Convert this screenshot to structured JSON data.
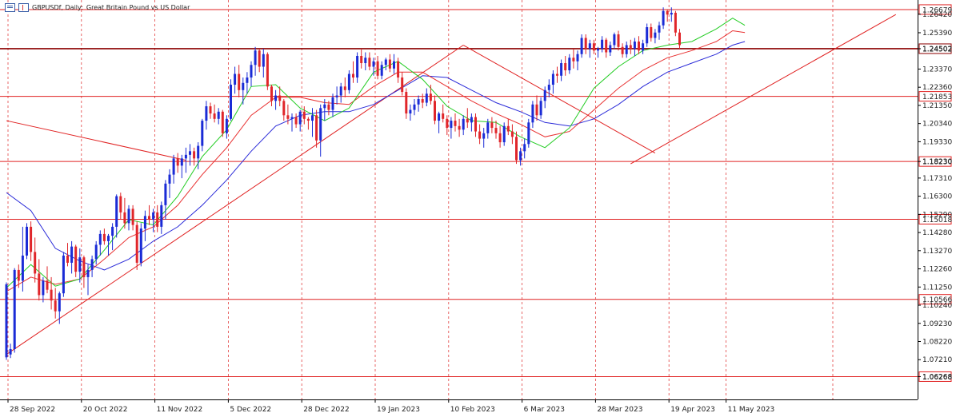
{
  "header": {
    "symbol": "GBPUSDf, Daily:",
    "description": "Great Britain Pound vs US Dollar"
  },
  "colors": {
    "bull": "#1a2bd6",
    "bear": "#e0262a",
    "ma_fast": "#22cc22",
    "ma_mid": "#e83030",
    "ma_slow": "#2a2ad8",
    "level_line": "#e02020",
    "level_line_strong": "#8b0000",
    "grid": "#e24040"
  },
  "chart_data": {
    "type": "candlestick",
    "ylim": [
      1.05,
      1.2721
    ],
    "y_ticks": [
      "1.26420",
      "1.25390",
      "1.24502",
      "1.23370",
      "1.22360",
      "1.21350",
      "1.20340",
      "1.19330",
      "1.18230",
      "1.17310",
      "1.16300",
      "1.15290",
      "1.14280",
      "1.13270",
      "1.12260",
      "1.11250",
      "1.10240",
      "1.09230",
      "1.08220",
      "1.07210",
      "1.06268"
    ],
    "x_labels": [
      "28 Sep 2022",
      "20 Oct 2022",
      "11 Nov 2022",
      "5 Dec 2022",
      "28 Dec 2022",
      "19 Jan 2023",
      "10 Feb 2023",
      "6 Mar 2023",
      "28 Mar 2023",
      "19 Apr 2023",
      "11 May 2023"
    ],
    "levels": [
      {
        "label": "1.26679",
        "value": 1.26679,
        "strong": false
      },
      {
        "label": "1.24502",
        "value": 1.24502,
        "strong": true
      },
      {
        "label": "1.21853",
        "value": 1.21853,
        "strong": false
      },
      {
        "label": "1.18230",
        "value": 1.1823,
        "strong": false
      },
      {
        "label": "1.15018",
        "value": 1.15018,
        "strong": false
      },
      {
        "label": "1.10566",
        "value": 1.10566,
        "strong": false
      },
      {
        "label": "1.06268",
        "value": 1.06268,
        "strong": false
      }
    ],
    "trendlines": [
      {
        "from": [
          0,
          1.075
        ],
        "to": [
          112,
          1.247
        ]
      },
      {
        "from": [
          0,
          1.205
        ],
        "to": [
          44,
          1.183
        ]
      },
      {
        "from": [
          112,
          1.247
        ],
        "to": [
          159,
          1.187
        ]
      },
      {
        "from": [
          153,
          1.181
        ],
        "to": [
          218,
          1.264
        ]
      }
    ],
    "ohlc": [
      [
        1.0734,
        1.1151,
        1.072,
        1.114
      ],
      [
        1.075,
        1.081,
        1.073,
        1.078
      ],
      [
        1.078,
        1.123,
        1.076,
        1.122
      ],
      [
        1.122,
        1.125,
        1.112,
        1.116
      ],
      [
        1.116,
        1.146,
        1.11,
        1.13
      ],
      [
        1.13,
        1.148,
        1.128,
        1.146
      ],
      [
        1.146,
        1.149,
        1.127,
        1.132
      ],
      [
        1.132,
        1.14,
        1.115,
        1.12
      ],
      [
        1.12,
        1.128,
        1.105,
        1.108
      ],
      [
        1.108,
        1.118,
        1.104,
        1.116
      ],
      [
        1.116,
        1.124,
        1.109,
        1.111
      ],
      [
        1.111,
        1.118,
        1.1,
        1.105
      ],
      [
        1.105,
        1.112,
        1.095,
        1.099
      ],
      [
        1.099,
        1.11,
        1.092,
        1.109
      ],
      [
        1.109,
        1.132,
        1.107,
        1.13
      ],
      [
        1.13,
        1.137,
        1.124,
        1.126
      ],
      [
        1.126,
        1.138,
        1.12,
        1.135
      ],
      [
        1.135,
        1.136,
        1.118,
        1.121
      ],
      [
        1.121,
        1.134,
        1.115,
        1.129
      ],
      [
        1.129,
        1.13,
        1.112,
        1.118
      ],
      [
        1.118,
        1.125,
        1.108,
        1.122
      ],
      [
        1.122,
        1.13,
        1.118,
        1.128
      ],
      [
        1.128,
        1.138,
        1.125,
        1.136
      ],
      [
        1.136,
        1.144,
        1.13,
        1.142
      ],
      [
        1.142,
        1.145,
        1.136,
        1.138
      ],
      [
        1.138,
        1.142,
        1.13,
        1.141
      ],
      [
        1.141,
        1.148,
        1.133,
        1.146
      ],
      [
        1.146,
        1.164,
        1.14,
        1.163
      ],
      [
        1.163,
        1.165,
        1.15,
        1.154
      ],
      [
        1.154,
        1.162,
        1.145,
        1.148
      ],
      [
        1.148,
        1.158,
        1.144,
        1.156
      ],
      [
        1.156,
        1.158,
        1.144,
        1.147
      ],
      [
        1.147,
        1.149,
        1.122,
        1.126
      ],
      [
        1.126,
        1.148,
        1.124,
        1.145
      ],
      [
        1.145,
        1.155,
        1.138,
        1.152
      ],
      [
        1.152,
        1.158,
        1.147,
        1.15
      ],
      [
        1.15,
        1.156,
        1.143,
        1.154
      ],
      [
        1.154,
        1.158,
        1.143,
        1.146
      ],
      [
        1.146,
        1.16,
        1.142,
        1.158
      ],
      [
        1.158,
        1.172,
        1.15,
        1.17
      ],
      [
        1.17,
        1.178,
        1.162,
        1.175
      ],
      [
        1.175,
        1.186,
        1.17,
        1.184
      ],
      [
        1.184,
        1.187,
        1.176,
        1.18
      ],
      [
        1.18,
        1.186,
        1.173,
        1.184
      ],
      [
        1.184,
        1.19,
        1.176,
        1.186
      ],
      [
        1.186,
        1.192,
        1.18,
        1.188
      ],
      [
        1.188,
        1.19,
        1.18,
        1.184
      ],
      [
        1.184,
        1.193,
        1.178,
        1.191
      ],
      [
        1.191,
        1.206,
        1.188,
        1.205
      ],
      [
        1.205,
        1.216,
        1.2,
        1.213
      ],
      [
        1.213,
        1.215,
        1.206,
        1.209
      ],
      [
        1.209,
        1.214,
        1.204,
        1.206
      ],
      [
        1.206,
        1.212,
        1.203,
        1.21
      ],
      [
        1.21,
        1.211,
        1.196,
        1.198
      ],
      [
        1.198,
        1.208,
        1.195,
        1.206
      ],
      [
        1.206,
        1.228,
        1.205,
        1.225
      ],
      [
        1.225,
        1.235,
        1.22,
        1.231
      ],
      [
        1.231,
        1.236,
        1.218,
        1.222
      ],
      [
        1.222,
        1.229,
        1.214,
        1.226
      ],
      [
        1.226,
        1.232,
        1.22,
        1.229
      ],
      [
        1.229,
        1.238,
        1.224,
        1.236
      ],
      [
        1.236,
        1.246,
        1.23,
        1.244
      ],
      [
        1.244,
        1.245,
        1.232,
        1.235
      ],
      [
        1.235,
        1.245,
        1.229,
        1.242
      ],
      [
        1.242,
        1.243,
        1.222,
        1.224
      ],
      [
        1.224,
        1.225,
        1.213,
        1.216
      ],
      [
        1.216,
        1.222,
        1.211,
        1.219
      ],
      [
        1.219,
        1.224,
        1.213,
        1.216
      ],
      [
        1.216,
        1.217,
        1.205,
        1.208
      ],
      [
        1.208,
        1.214,
        1.203,
        1.206
      ],
      [
        1.206,
        1.209,
        1.199,
        1.207
      ],
      [
        1.207,
        1.209,
        1.201,
        1.203
      ],
      [
        1.203,
        1.211,
        1.199,
        1.21
      ],
      [
        1.21,
        1.213,
        1.203,
        1.206
      ],
      [
        1.206,
        1.207,
        1.2,
        1.205
      ],
      [
        1.205,
        1.212,
        1.196,
        1.208
      ],
      [
        1.208,
        1.211,
        1.19,
        1.194
      ],
      [
        1.194,
        1.214,
        1.185,
        1.212
      ],
      [
        1.212,
        1.217,
        1.205,
        1.214
      ],
      [
        1.214,
        1.216,
        1.208,
        1.211
      ],
      [
        1.211,
        1.22,
        1.207,
        1.218
      ],
      [
        1.218,
        1.224,
        1.214,
        1.219
      ],
      [
        1.219,
        1.226,
        1.215,
        1.224
      ],
      [
        1.224,
        1.229,
        1.218,
        1.222
      ],
      [
        1.222,
        1.233,
        1.22,
        1.231
      ],
      [
        1.231,
        1.238,
        1.226,
        1.229
      ],
      [
        1.229,
        1.243,
        1.226,
        1.241
      ],
      [
        1.241,
        1.245,
        1.234,
        1.237
      ],
      [
        1.237,
        1.243,
        1.233,
        1.24
      ],
      [
        1.24,
        1.243,
        1.233,
        1.235
      ],
      [
        1.235,
        1.24,
        1.23,
        1.238
      ],
      [
        1.238,
        1.241,
        1.228,
        1.23
      ],
      [
        1.23,
        1.238,
        1.228,
        1.236
      ],
      [
        1.236,
        1.24,
        1.233,
        1.239
      ],
      [
        1.239,
        1.242,
        1.232,
        1.234
      ],
      [
        1.234,
        1.242,
        1.231,
        1.238
      ],
      [
        1.238,
        1.24,
        1.226,
        1.229
      ],
      [
        1.229,
        1.232,
        1.219,
        1.221
      ],
      [
        1.221,
        1.223,
        1.206,
        1.209
      ],
      [
        1.209,
        1.214,
        1.205,
        1.211
      ],
      [
        1.211,
        1.217,
        1.208,
        1.214
      ],
      [
        1.214,
        1.219,
        1.21,
        1.217
      ],
      [
        1.217,
        1.22,
        1.212,
        1.215
      ],
      [
        1.215,
        1.223,
        1.213,
        1.22
      ],
      [
        1.22,
        1.225,
        1.214,
        1.216
      ],
      [
        1.216,
        1.219,
        1.203,
        1.205
      ],
      [
        1.205,
        1.21,
        1.198,
        1.209
      ],
      [
        1.209,
        1.214,
        1.204,
        1.206
      ],
      [
        1.206,
        1.208,
        1.197,
        1.201
      ],
      [
        1.201,
        1.207,
        1.195,
        1.205
      ],
      [
        1.205,
        1.209,
        1.199,
        1.202
      ],
      [
        1.202,
        1.206,
        1.196,
        1.2
      ],
      [
        1.2,
        1.208,
        1.197,
        1.206
      ],
      [
        1.206,
        1.212,
        1.201,
        1.204
      ],
      [
        1.204,
        1.209,
        1.199,
        1.207
      ],
      [
        1.207,
        1.209,
        1.196,
        1.199
      ],
      [
        1.199,
        1.203,
        1.192,
        1.195
      ],
      [
        1.195,
        1.201,
        1.19,
        1.198
      ],
      [
        1.198,
        1.206,
        1.195,
        1.204
      ],
      [
        1.204,
        1.207,
        1.198,
        1.201
      ],
      [
        1.201,
        1.205,
        1.195,
        1.198
      ],
      [
        1.198,
        1.202,
        1.19,
        1.193
      ],
      [
        1.193,
        1.204,
        1.191,
        1.202
      ],
      [
        1.202,
        1.206,
        1.197,
        1.199
      ],
      [
        1.199,
        1.203,
        1.192,
        1.196
      ],
      [
        1.196,
        1.199,
        1.181,
        1.183
      ],
      [
        1.183,
        1.19,
        1.18,
        1.188
      ],
      [
        1.188,
        1.195,
        1.184,
        1.192
      ],
      [
        1.192,
        1.206,
        1.19,
        1.204
      ],
      [
        1.204,
        1.216,
        1.201,
        1.214
      ],
      [
        1.214,
        1.219,
        1.205,
        1.208
      ],
      [
        1.208,
        1.218,
        1.206,
        1.216
      ],
      [
        1.216,
        1.224,
        1.212,
        1.222
      ],
      [
        1.222,
        1.228,
        1.218,
        1.225
      ],
      [
        1.225,
        1.233,
        1.22,
        1.231
      ],
      [
        1.231,
        1.235,
        1.226,
        1.23
      ],
      [
        1.23,
        1.239,
        1.227,
        1.237
      ],
      [
        1.237,
        1.241,
        1.23,
        1.233
      ],
      [
        1.233,
        1.242,
        1.231,
        1.24
      ],
      [
        1.24,
        1.245,
        1.234,
        1.238
      ],
      [
        1.238,
        1.244,
        1.233,
        1.242
      ],
      [
        1.242,
        1.253,
        1.24,
        1.251
      ],
      [
        1.251,
        1.253,
        1.242,
        1.245
      ],
      [
        1.245,
        1.25,
        1.24,
        1.248
      ],
      [
        1.248,
        1.25,
        1.242,
        1.244
      ],
      [
        1.244,
        1.246,
        1.24,
        1.245
      ],
      [
        1.245,
        1.252,
        1.243,
        1.25
      ],
      [
        1.25,
        1.251,
        1.24,
        1.243
      ],
      [
        1.243,
        1.249,
        1.241,
        1.247
      ],
      [
        1.247,
        1.254,
        1.245,
        1.253
      ],
      [
        1.253,
        1.255,
        1.244,
        1.246
      ],
      [
        1.246,
        1.248,
        1.24,
        1.242
      ],
      [
        1.242,
        1.249,
        1.24,
        1.247
      ],
      [
        1.247,
        1.25,
        1.242,
        1.245
      ],
      [
        1.245,
        1.251,
        1.241,
        1.249
      ],
      [
        1.249,
        1.252,
        1.242,
        1.244
      ],
      [
        1.244,
        1.25,
        1.242,
        1.248
      ],
      [
        1.248,
        1.259,
        1.246,
        1.257
      ],
      [
        1.257,
        1.259,
        1.249,
        1.251
      ],
      [
        1.251,
        1.256,
        1.248,
        1.254
      ],
      [
        1.254,
        1.26,
        1.25,
        1.258
      ],
      [
        1.258,
        1.268,
        1.256,
        1.266
      ],
      [
        1.266,
        1.267,
        1.26,
        1.264
      ],
      [
        1.264,
        1.268,
        1.26,
        1.265
      ],
      [
        1.265,
        1.266,
        1.252,
        1.254
      ],
      [
        1.254,
        1.256,
        1.245,
        1.247
      ]
    ],
    "ma_fast": [
      [
        0,
        1.112
      ],
      [
        6,
        1.125
      ],
      [
        12,
        1.113
      ],
      [
        18,
        1.117
      ],
      [
        24,
        1.133
      ],
      [
        30,
        1.15
      ],
      [
        36,
        1.147
      ],
      [
        42,
        1.163
      ],
      [
        48,
        1.185
      ],
      [
        54,
        1.2
      ],
      [
        60,
        1.224
      ],
      [
        66,
        1.225
      ],
      [
        72,
        1.212
      ],
      [
        78,
        1.205
      ],
      [
        84,
        1.212
      ],
      [
        90,
        1.232
      ],
      [
        96,
        1.238
      ],
      [
        102,
        1.228
      ],
      [
        108,
        1.213
      ],
      [
        114,
        1.205
      ],
      [
        120,
        1.204
      ],
      [
        126,
        1.196
      ],
      [
        132,
        1.19
      ],
      [
        138,
        1.201
      ],
      [
        144,
        1.223
      ],
      [
        150,
        1.235
      ],
      [
        156,
        1.244
      ],
      [
        162,
        1.247
      ],
      [
        168,
        1.249
      ],
      [
        174,
        1.256
      ],
      [
        178,
        1.262
      ],
      [
        181,
        1.258
      ]
    ],
    "ma_mid": [
      [
        0,
        1.11
      ],
      [
        6,
        1.118
      ],
      [
        12,
        1.114
      ],
      [
        18,
        1.117
      ],
      [
        24,
        1.128
      ],
      [
        30,
        1.14
      ],
      [
        36,
        1.146
      ],
      [
        42,
        1.158
      ],
      [
        48,
        1.175
      ],
      [
        54,
        1.19
      ],
      [
        60,
        1.208
      ],
      [
        66,
        1.218
      ],
      [
        72,
        1.218
      ],
      [
        78,
        1.215
      ],
      [
        84,
        1.214
      ],
      [
        90,
        1.224
      ],
      [
        96,
        1.232
      ],
      [
        102,
        1.232
      ],
      [
        108,
        1.224
      ],
      [
        114,
        1.216
      ],
      [
        120,
        1.209
      ],
      [
        126,
        1.203
      ],
      [
        132,
        1.196
      ],
      [
        138,
        1.199
      ],
      [
        144,
        1.211
      ],
      [
        150,
        1.223
      ],
      [
        156,
        1.233
      ],
      [
        162,
        1.24
      ],
      [
        168,
        1.244
      ],
      [
        174,
        1.249
      ],
      [
        178,
        1.255
      ],
      [
        181,
        1.254
      ]
    ],
    "ma_slow": [
      [
        0,
        1.165
      ],
      [
        6,
        1.155
      ],
      [
        12,
        1.134
      ],
      [
        18,
        1.127
      ],
      [
        24,
        1.122
      ],
      [
        30,
        1.128
      ],
      [
        36,
        1.138
      ],
      [
        42,
        1.146
      ],
      [
        48,
        1.158
      ],
      [
        54,
        1.172
      ],
      [
        60,
        1.188
      ],
      [
        66,
        1.202
      ],
      [
        72,
        1.208
      ],
      [
        78,
        1.21
      ],
      [
        84,
        1.21
      ],
      [
        90,
        1.214
      ],
      [
        96,
        1.222
      ],
      [
        102,
        1.23
      ],
      [
        108,
        1.229
      ],
      [
        114,
        1.222
      ],
      [
        120,
        1.215
      ],
      [
        126,
        1.21
      ],
      [
        132,
        1.204
      ],
      [
        138,
        1.202
      ],
      [
        144,
        1.206
      ],
      [
        150,
        1.214
      ],
      [
        156,
        1.224
      ],
      [
        162,
        1.232
      ],
      [
        168,
        1.237
      ],
      [
        174,
        1.242
      ],
      [
        178,
        1.247
      ],
      [
        181,
        1.249
      ]
    ]
  }
}
